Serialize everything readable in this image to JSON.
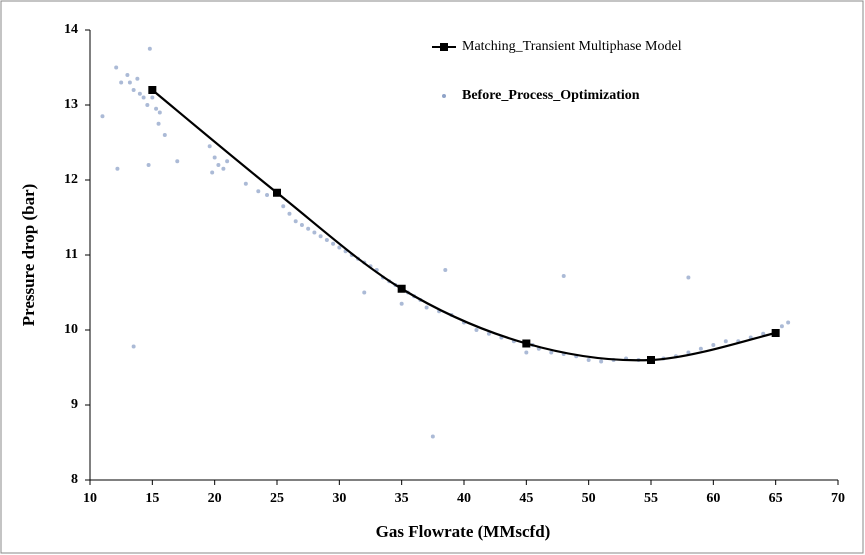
{
  "chart_data": {
    "type": "line-scatter",
    "x_label": "Gas Flowrate (MMscfd)",
    "y_label": "Pressure drop (bar)",
    "xlim": [
      10,
      70
    ],
    "xticks": [
      10,
      15,
      20,
      25,
      30,
      35,
      40,
      45,
      50,
      55,
      60,
      65,
      70
    ],
    "ylim": [
      8,
      14
    ],
    "yticks": [
      8,
      9,
      10,
      11,
      12,
      13,
      14
    ],
    "grid": false,
    "legend": "top-right",
    "series": [
      {
        "name": "Matching_Transient Multiphase Model",
        "kind": "line",
        "color": "#000000",
        "x": [
          15,
          25,
          35,
          45,
          55,
          65
        ],
        "values": [
          13.2,
          11.83,
          10.55,
          9.82,
          9.6,
          9.96
        ]
      },
      {
        "name": "Before_Process_Optimization",
        "kind": "scatter",
        "color": "#8fa3c8",
        "x": [
          12.1,
          12.5,
          13,
          13.2,
          13.5,
          13.8,
          14,
          14.3,
          14.6,
          15,
          15.3,
          15.6,
          14.8,
          15.5,
          16,
          11,
          12.2,
          13.5,
          14.7,
          19.6,
          20,
          20.3,
          20.7,
          21,
          19.8,
          17,
          22.5,
          23.5,
          24.2,
          25.5,
          26,
          26.5,
          27,
          27.5,
          28,
          28.5,
          29,
          29.5,
          30,
          30.5,
          31,
          31.5,
          32,
          32.5,
          33,
          33.5,
          34,
          34.5,
          35.5,
          36,
          35,
          36.5,
          37.5,
          38.5,
          37,
          38,
          39,
          40,
          41,
          42,
          43,
          44,
          45.5,
          46,
          47,
          48,
          48,
          49,
          50,
          51,
          52,
          53,
          54,
          56,
          57,
          58,
          58,
          59,
          60,
          61,
          62,
          63,
          64,
          65.5,
          66,
          45,
          32
        ],
        "values": [
          13.5,
          13.3,
          13.4,
          13.3,
          13.2,
          13.35,
          13.15,
          13.1,
          13.0,
          13.1,
          12.95,
          12.9,
          13.75,
          12.75,
          12.6,
          12.85,
          12.15,
          9.78,
          12.2,
          12.45,
          12.3,
          12.2,
          12.15,
          12.25,
          12.1,
          12.25,
          11.95,
          11.85,
          11.8,
          11.65,
          11.55,
          11.45,
          11.4,
          11.35,
          11.3,
          11.25,
          11.2,
          11.15,
          11.1,
          11.05,
          11.0,
          10.95,
          10.9,
          10.85,
          10.8,
          10.7,
          10.65,
          10.6,
          10.5,
          10.45,
          10.35,
          10.4,
          8.58,
          10.8,
          10.3,
          10.25,
          10.2,
          10.1,
          10.0,
          9.95,
          9.9,
          9.85,
          9.8,
          9.75,
          9.7,
          9.68,
          10.72,
          9.65,
          9.6,
          9.58,
          9.6,
          9.62,
          9.6,
          9.62,
          9.65,
          9.7,
          10.7,
          9.75,
          9.8,
          9.85,
          9.85,
          9.9,
          9.95,
          10.05,
          10.1,
          9.7,
          10.5
        ]
      }
    ]
  }
}
